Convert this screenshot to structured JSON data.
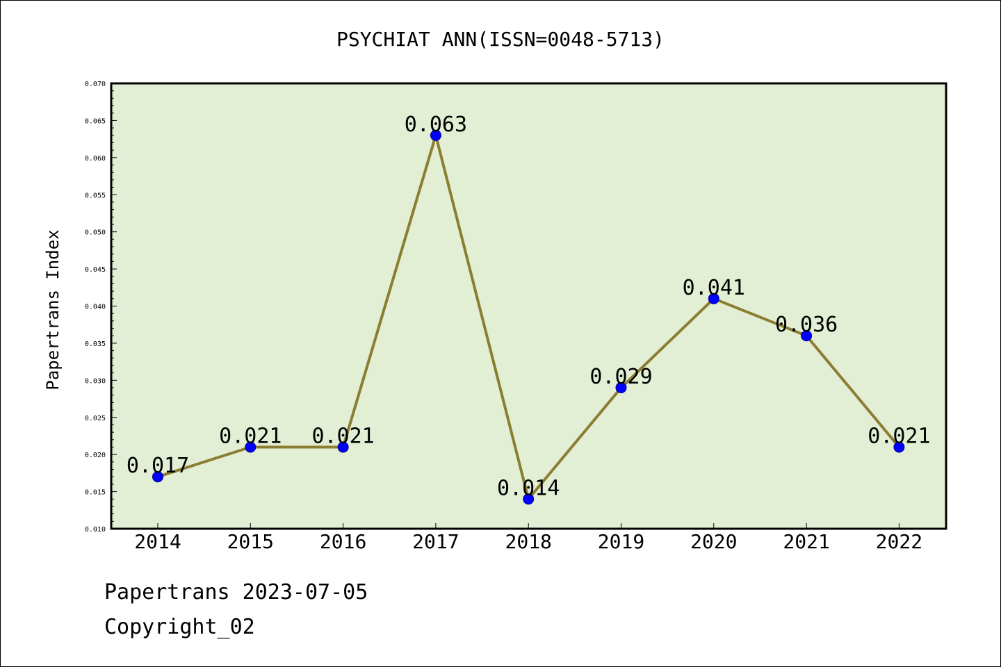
{
  "chart_data": {
    "type": "line",
    "title": "PSYCHIAT ANN(ISSN=0048-5713)",
    "xlabel": "",
    "ylabel": "Papertrans Index",
    "categories": [
      "2014",
      "2015",
      "2016",
      "2017",
      "2018",
      "2019",
      "2020",
      "2021",
      "2022"
    ],
    "series": [
      {
        "values": [
          0.017,
          0.021,
          0.021,
          0.063,
          0.014,
          0.029,
          0.041,
          0.036,
          0.021
        ],
        "labels": [
          "0.017",
          "0.021",
          "0.021",
          "0.063",
          "0.014",
          "0.029",
          "0.041",
          "0.036",
          "0.021"
        ],
        "line_color": "#8b7d32",
        "marker_color": "#0000ff"
      }
    ],
    "ylim": [
      0.01,
      0.07
    ],
    "yticks": [
      "0.010",
      "0.015",
      "0.020",
      "0.025",
      "0.030",
      "0.035",
      "0.040",
      "0.045",
      "0.050",
      "0.055",
      "0.060",
      "0.065",
      "0.070"
    ],
    "plot_background": "#e2efd4",
    "grid": false,
    "legend": "none"
  },
  "footer": {
    "line1": "Papertrans 2023-07-05",
    "line2": "Copyright_02"
  }
}
